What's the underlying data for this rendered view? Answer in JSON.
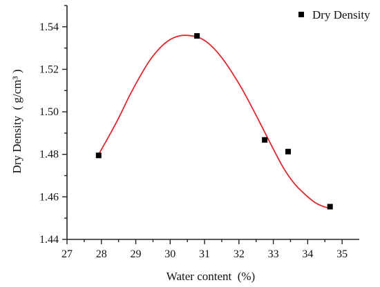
{
  "chart_data": {
    "type": "scatter",
    "title": "",
    "xlabel": "Water content  (%)",
    "ylabel": "Dry Density  ( g/cm³ )",
    "xlim": [
      27,
      35.5
    ],
    "ylim": [
      1.44,
      1.55
    ],
    "xticks": [
      27,
      28,
      29,
      30,
      31,
      32,
      33,
      34,
      35
    ],
    "xtick_labels": [
      "27",
      "28",
      "29",
      "30",
      "31",
      "32",
      "33",
      "34",
      "35"
    ],
    "yticks": [
      1.44,
      1.46,
      1.48,
      1.5,
      1.52,
      1.54
    ],
    "ytick_labels": [
      "1.44",
      "1.46",
      "1.48",
      "1.50",
      "1.52",
      "1.54"
    ],
    "grid": false,
    "legend_position": "top-right",
    "series": [
      {
        "name": "Dry Density",
        "marker": "square",
        "color": "#000000",
        "x": [
          27.92,
          30.78,
          32.75,
          33.43,
          34.65
        ],
        "y": [
          1.4795,
          1.5357,
          1.4868,
          1.4813,
          1.4554
        ]
      }
    ],
    "fit_curve": {
      "color": "#e0262b",
      "x": [
        27.92,
        28.2,
        28.5,
        28.8,
        29.1,
        29.4,
        29.7,
        30.0,
        30.3,
        30.6,
        30.9,
        31.2,
        31.5,
        31.8,
        32.1,
        32.4,
        32.7,
        33.0,
        33.3,
        33.6,
        33.9,
        34.2,
        34.45,
        34.65
      ],
      "y": [
        1.48,
        1.488,
        1.497,
        1.507,
        1.516,
        1.524,
        1.53,
        1.534,
        1.5358,
        1.5358,
        1.5345,
        1.531,
        1.5255,
        1.5185,
        1.5105,
        1.5015,
        1.492,
        1.4825,
        1.4735,
        1.4665,
        1.4615,
        1.4575,
        1.4555,
        1.4547
      ]
    }
  }
}
